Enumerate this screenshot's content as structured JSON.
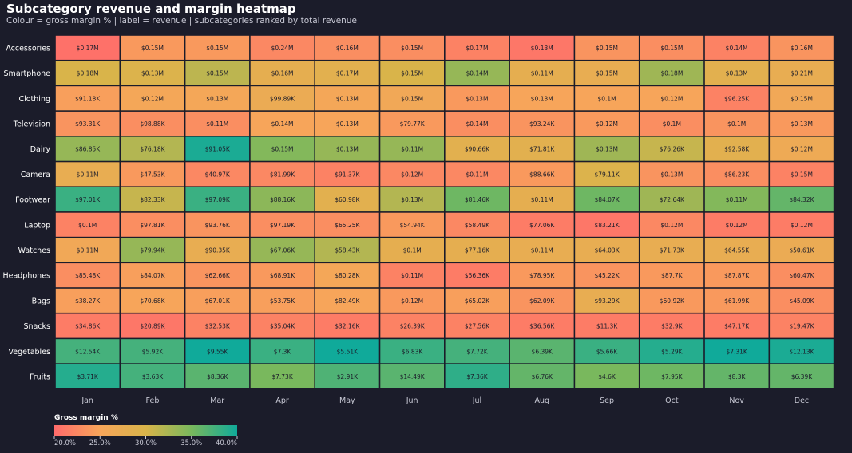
{
  "chart_data": {
    "type": "heatmap",
    "title": "Subcategory revenue and margin heatmap",
    "subtitle": "Colour = gross margin % | label = revenue | subcategories ranked by total revenue",
    "x_categories": [
      "Jan",
      "Feb",
      "Mar",
      "Apr",
      "May",
      "Jun",
      "Jul",
      "Aug",
      "Sep",
      "Oct",
      "Nov",
      "Dec"
    ],
    "y_categories": [
      "Accessories",
      "Smartphone",
      "Clothing",
      "Television",
      "Dairy",
      "Camera",
      "Footwear",
      "Laptop",
      "Watches",
      "Headphones",
      "Bags",
      "Snacks",
      "Vegetables",
      "Fruits"
    ],
    "labels": [
      [
        "$0.17M",
        "$0.15M",
        "$0.15M",
        "$0.24M",
        "$0.16M",
        "$0.15M",
        "$0.17M",
        "$0.13M",
        "$0.15M",
        "$0.15M",
        "$0.14M",
        "$0.16M"
      ],
      [
        "$0.18M",
        "$0.13M",
        "$0.15M",
        "$0.16M",
        "$0.17M",
        "$0.15M",
        "$0.14M",
        "$0.11M",
        "$0.15M",
        "$0.18M",
        "$0.13M",
        "$0.21M"
      ],
      [
        "$91.18K",
        "$0.12M",
        "$0.13M",
        "$99.89K",
        "$0.13M",
        "$0.15M",
        "$0.13M",
        "$0.13M",
        "$0.1M",
        "$0.12M",
        "$96.25K",
        "$0.15M"
      ],
      [
        "$93.31K",
        "$98.88K",
        "$0.11M",
        "$0.14M",
        "$0.13M",
        "$79.77K",
        "$0.14M",
        "$93.24K",
        "$0.12M",
        "$0.1M",
        "$0.1M",
        "$0.13M"
      ],
      [
        "$86.85K",
        "$76.18K",
        "$91.05K",
        "$0.15M",
        "$0.13M",
        "$0.11M",
        "$90.66K",
        "$71.81K",
        "$0.13M",
        "$76.26K",
        "$92.58K",
        "$0.12M"
      ],
      [
        "$0.11M",
        "$47.53K",
        "$40.97K",
        "$81.99K",
        "$91.37K",
        "$0.12M",
        "$0.11M",
        "$88.66K",
        "$79.11K",
        "$0.13M",
        "$86.23K",
        "$0.15M"
      ],
      [
        "$97.01K",
        "$82.33K",
        "$97.09K",
        "$88.16K",
        "$60.98K",
        "$0.13M",
        "$81.46K",
        "$0.11M",
        "$84.07K",
        "$72.64K",
        "$0.11M",
        "$84.32K"
      ],
      [
        "$0.1M",
        "$97.81K",
        "$93.76K",
        "$97.19K",
        "$65.25K",
        "$54.94K",
        "$58.49K",
        "$77.06K",
        "$83.21K",
        "$0.12M",
        "$0.12M",
        "$0.12M"
      ],
      [
        "$0.11M",
        "$79.94K",
        "$90.35K",
        "$67.06K",
        "$58.43K",
        "$0.1M",
        "$77.16K",
        "$0.11M",
        "$64.03K",
        "$71.73K",
        "$64.55K",
        "$50.61K"
      ],
      [
        "$85.48K",
        "$84.07K",
        "$62.66K",
        "$68.91K",
        "$80.28K",
        "$0.11M",
        "$56.36K",
        "$78.95K",
        "$45.22K",
        "$87.7K",
        "$87.87K",
        "$60.47K"
      ],
      [
        "$38.27K",
        "$70.68K",
        "$67.01K",
        "$53.75K",
        "$82.49K",
        "$0.12M",
        "$65.02K",
        "$62.09K",
        "$93.29K",
        "$60.92K",
        "$61.99K",
        "$45.09K"
      ],
      [
        "$34.86K",
        "$20.89K",
        "$32.53K",
        "$35.04K",
        "$32.16K",
        "$26.39K",
        "$27.56K",
        "$36.56K",
        "$11.3K",
        "$32.9K",
        "$47.17K",
        "$19.47K"
      ],
      [
        "$12.54K",
        "$5.92K",
        "$9.55K",
        "$7.3K",
        "$5.51K",
        "$6.83K",
        "$7.72K",
        "$6.39K",
        "$5.66K",
        "$5.29K",
        "$7.31K",
        "$12.13K"
      ],
      [
        "$3.71K",
        "$3.63K",
        "$8.36K",
        "$7.73K",
        "$2.91K",
        "$14.49K",
        "$7.36K",
        "$6.76K",
        "$4.6K",
        "$7.95K",
        "$8.3K",
        "$6.39K"
      ]
    ],
    "margins": [
      [
        20.5,
        24.0,
        24.0,
        22.5,
        23.0,
        23.0,
        22.0,
        21.0,
        23.5,
        23.0,
        22.0,
        23.5
      ],
      [
        30.0,
        29.5,
        31.5,
        28.0,
        28.5,
        30.0,
        33.5,
        28.0,
        27.5,
        33.0,
        28.5,
        27.5
      ],
      [
        24.5,
        25.5,
        25.5,
        27.0,
        25.5,
        26.0,
        24.0,
        25.0,
        25.0,
        25.0,
        22.0,
        26.0
      ],
      [
        23.5,
        23.0,
        23.0,
        25.0,
        25.0,
        24.0,
        23.0,
        23.5,
        24.0,
        23.0,
        23.5,
        24.0
      ],
      [
        33.5,
        32.0,
        39.5,
        34.5,
        33.5,
        33.5,
        28.5,
        28.5,
        33.0,
        31.0,
        28.5,
        26.5
      ],
      [
        27.5,
        24.0,
        22.5,
        22.5,
        22.0,
        22.5,
        22.5,
        24.0,
        29.5,
        23.5,
        23.0,
        22.0
      ],
      [
        38.0,
        31.0,
        38.0,
        34.0,
        28.5,
        32.0,
        35.5,
        28.0,
        35.5,
        33.0,
        34.5,
        36.0
      ],
      [
        22.0,
        23.0,
        23.5,
        23.0,
        23.0,
        24.0,
        22.5,
        21.5,
        21.0,
        22.5,
        21.5,
        21.5
      ],
      [
        26.0,
        33.5,
        27.5,
        33.5,
        32.0,
        28.0,
        28.0,
        27.5,
        27.5,
        27.5,
        27.5,
        27.0
      ],
      [
        23.0,
        24.5,
        23.5,
        24.0,
        25.5,
        22.0,
        21.5,
        24.0,
        23.5,
        24.0,
        24.0,
        23.0
      ],
      [
        24.5,
        25.0,
        24.5,
        24.5,
        25.0,
        24.0,
        24.5,
        23.5,
        27.5,
        24.0,
        24.0,
        23.0
      ],
      [
        21.5,
        21.0,
        22.0,
        22.0,
        21.5,
        22.0,
        22.0,
        21.5,
        21.5,
        21.5,
        21.5,
        22.0
      ],
      [
        37.5,
        37.5,
        40.0,
        38.0,
        40.0,
        38.0,
        37.5,
        36.5,
        38.0,
        39.0,
        40.5,
        39.5
      ],
      [
        39.0,
        37.5,
        36.5,
        35.0,
        37.0,
        36.5,
        38.5,
        36.0,
        35.0,
        35.5,
        36.0,
        36.0
      ]
    ],
    "colorbar": {
      "label": "Gross margin %",
      "min": 20.0,
      "max": 40.0,
      "ticks": [
        "20.0%",
        "25.0%",
        "30.0%",
        "35.0%",
        "40.0%"
      ],
      "tick_values": [
        20,
        25,
        30,
        35,
        40
      ]
    },
    "colorscale": [
      "#ff6b6b",
      "#f7a55a",
      "#d9b44a",
      "#79b85d",
      "#10aa9a"
    ]
  }
}
